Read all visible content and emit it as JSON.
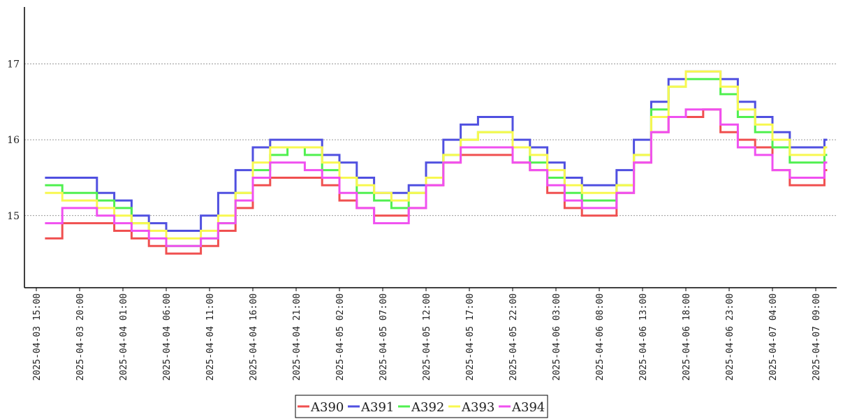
{
  "chart_data": {
    "type": "line",
    "title": "",
    "xlabel": "",
    "ylabel": "",
    "ylim": [
      14.05,
      17.75
    ],
    "yticks": [
      15,
      16,
      17
    ],
    "ytick_labels": [
      "15",
      "16",
      "17"
    ],
    "grid": "horizontal-dotted",
    "legend_position": "bottom-center",
    "x_ticks": [
      "2025-04-03 15:00",
      "2025-04-03 20:00",
      "2025-04-04 01:00",
      "2025-04-04 06:00",
      "2025-04-04 11:00",
      "2025-04-04 16:00",
      "2025-04-04 21:00",
      "2025-04-05 02:00",
      "2025-04-05 07:00",
      "2025-04-05 12:00",
      "2025-04-05 17:00",
      "2025-04-05 22:00",
      "2025-04-06 03:00",
      "2025-04-06 08:00",
      "2025-04-06 13:00",
      "2025-04-06 18:00",
      "2025-04-06 23:00",
      "2025-04-07 04:00",
      "2025-04-07 09:00"
    ],
    "x": [
      "2025-04-03 16:00",
      "2025-04-03 18:00",
      "2025-04-03 20:00",
      "2025-04-03 22:00",
      "2025-04-04 00:00",
      "2025-04-04 02:00",
      "2025-04-04 04:00",
      "2025-04-04 06:00",
      "2025-04-04 08:00",
      "2025-04-04 10:00",
      "2025-04-04 12:00",
      "2025-04-04 14:00",
      "2025-04-04 16:00",
      "2025-04-04 18:00",
      "2025-04-04 20:00",
      "2025-04-04 22:00",
      "2025-04-05 00:00",
      "2025-04-05 02:00",
      "2025-04-05 04:00",
      "2025-04-05 06:00",
      "2025-04-05 08:00",
      "2025-04-05 10:00",
      "2025-04-05 12:00",
      "2025-04-05 14:00",
      "2025-04-05 16:00",
      "2025-04-05 18:00",
      "2025-04-05 20:00",
      "2025-04-05 22:00",
      "2025-04-06 00:00",
      "2025-04-06 02:00",
      "2025-04-06 04:00",
      "2025-04-06 06:00",
      "2025-04-06 08:00",
      "2025-04-06 10:00",
      "2025-04-06 12:00",
      "2025-04-06 14:00",
      "2025-04-06 16:00",
      "2025-04-06 18:00",
      "2025-04-06 20:00",
      "2025-04-06 22:00",
      "2025-04-07 00:00",
      "2025-04-07 02:00",
      "2025-04-07 04:00",
      "2025-04-07 06:00",
      "2025-04-07 08:00",
      "2025-04-07 10:00"
    ],
    "series": [
      {
        "name": "A390",
        "color": "#f05050",
        "values": [
          14.7,
          14.9,
          14.9,
          14.9,
          14.8,
          14.7,
          14.6,
          14.5,
          14.5,
          14.6,
          14.8,
          15.1,
          15.4,
          15.5,
          15.5,
          15.5,
          15.4,
          15.2,
          15.1,
          15.0,
          15.0,
          15.1,
          15.4,
          15.7,
          15.8,
          15.8,
          15.8,
          15.7,
          15.6,
          15.3,
          15.1,
          15.0,
          15.0,
          15.3,
          15.7,
          16.1,
          16.3,
          16.3,
          16.4,
          16.1,
          16.0,
          15.9,
          15.6,
          15.4,
          15.4,
          15.6
        ]
      },
      {
        "name": "A391",
        "color": "#5050e0",
        "values": [
          15.5,
          15.5,
          15.5,
          15.3,
          15.2,
          15.0,
          14.9,
          14.8,
          14.8,
          15.0,
          15.3,
          15.6,
          15.9,
          16.0,
          16.0,
          16.0,
          15.8,
          15.7,
          15.5,
          15.3,
          15.3,
          15.4,
          15.7,
          16.0,
          16.2,
          16.3,
          16.3,
          16.0,
          15.9,
          15.7,
          15.5,
          15.4,
          15.4,
          15.6,
          16.0,
          16.5,
          16.8,
          16.9,
          16.9,
          16.8,
          16.5,
          16.3,
          16.1,
          15.9,
          15.9,
          16.0
        ]
      },
      {
        "name": "A392",
        "color": "#50f050",
        "values": [
          15.4,
          15.3,
          15.3,
          15.2,
          15.1,
          14.9,
          14.8,
          14.6,
          14.6,
          14.7,
          14.9,
          15.3,
          15.6,
          15.8,
          15.9,
          15.8,
          15.6,
          15.5,
          15.3,
          15.2,
          15.1,
          15.3,
          15.5,
          15.8,
          16.0,
          16.1,
          16.1,
          15.9,
          15.7,
          15.5,
          15.3,
          15.2,
          15.2,
          15.4,
          15.8,
          16.4,
          16.7,
          16.8,
          16.8,
          16.6,
          16.3,
          16.1,
          15.9,
          15.7,
          15.7,
          15.8
        ]
      },
      {
        "name": "A393",
        "color": "#f8f850",
        "values": [
          15.3,
          15.2,
          15.2,
          15.1,
          15.0,
          14.9,
          14.8,
          14.7,
          14.7,
          14.8,
          15.0,
          15.3,
          15.7,
          15.9,
          15.9,
          15.9,
          15.7,
          15.5,
          15.4,
          15.3,
          15.2,
          15.3,
          15.5,
          15.8,
          16.0,
          16.1,
          16.1,
          15.9,
          15.8,
          15.6,
          15.4,
          15.3,
          15.3,
          15.4,
          15.8,
          16.3,
          16.7,
          16.9,
          16.9,
          16.7,
          16.4,
          16.2,
          16.0,
          15.8,
          15.8,
          15.9
        ]
      },
      {
        "name": "A394",
        "color": "#f050f0",
        "values": [
          14.9,
          15.1,
          15.1,
          15.0,
          14.9,
          14.8,
          14.7,
          14.6,
          14.6,
          14.7,
          14.9,
          15.2,
          15.5,
          15.7,
          15.7,
          15.6,
          15.5,
          15.3,
          15.1,
          14.9,
          14.9,
          15.1,
          15.4,
          15.7,
          15.9,
          15.9,
          15.9,
          15.7,
          15.6,
          15.4,
          15.2,
          15.1,
          15.1,
          15.3,
          15.7,
          16.1,
          16.3,
          16.4,
          16.4,
          16.2,
          15.9,
          15.8,
          15.6,
          15.5,
          15.5,
          15.7
        ]
      }
    ]
  }
}
